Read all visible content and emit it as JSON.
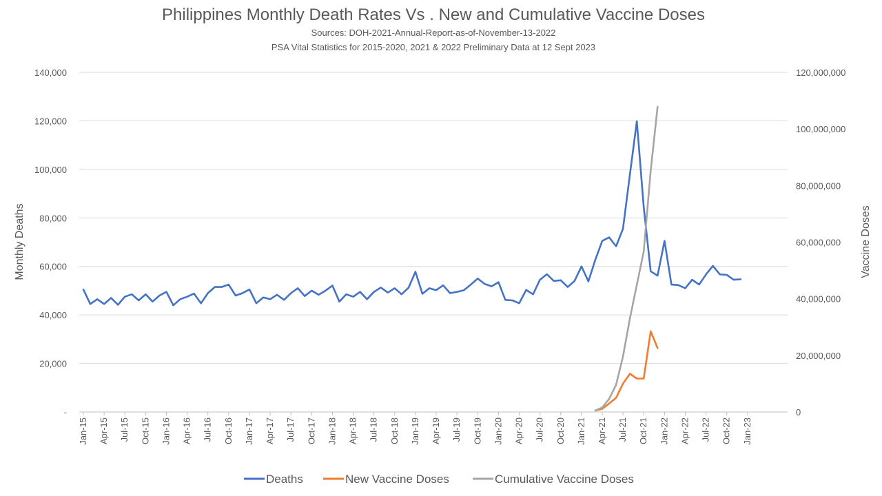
{
  "chart_data": {
    "type": "line",
    "title": "Philippines Monthly Death Rates Vs . New and Cumulative Vaccine Doses",
    "subtitles": [
      "Sources: DOH-2021-Annual-Report-as-of-November-13-2022",
      "PSA Vital Statistics for 2015-2020, 2021 & 2022 Preliminary Data at 12 Sept 2023"
    ],
    "ylabel": "Monthly Deaths",
    "y2label": "Vaccine Doses",
    "ylim": [
      0,
      140000
    ],
    "y2lim": [
      0,
      120000000
    ],
    "y_ticks": [
      "-",
      "20,000",
      "40,000",
      "60,000",
      "80,000",
      "100,000",
      "120,000",
      "140,000"
    ],
    "y2_ticks": [
      "0",
      "20,000,000",
      "40,000,000",
      "60,000,000",
      "80,000,000",
      "100,000,000",
      "120,000,000"
    ],
    "x_start": "Jan-15",
    "x_tick_labels": [
      "Jan-15",
      "Apr-15",
      "Jul-15",
      "Oct-15",
      "Jan-16",
      "Apr-16",
      "Jul-16",
      "Oct-16",
      "Jan-17",
      "Apr-17",
      "Jul-17",
      "Oct-17",
      "Jan-18",
      "Apr-18",
      "Jul-18",
      "Oct-18",
      "Jan-19",
      "Apr-19",
      "Jul-19",
      "Oct-19",
      "Jan-20",
      "Apr-20",
      "Jul-20",
      "Oct-20",
      "Jan-21",
      "Apr-21",
      "Jul-21",
      "Oct-21",
      "Jan-22",
      "Apr-22",
      "Jul-22",
      "Oct-22",
      "Jan-23"
    ],
    "grid": "horizontal",
    "legend_position": "bottom",
    "series": [
      {
        "name": "Deaths",
        "axis": "left",
        "color": "#4472C4",
        "start": "Jan-15",
        "values": [
          50500,
          44500,
          46500,
          44500,
          47000,
          44200,
          47500,
          48500,
          46000,
          48500,
          45500,
          48000,
          49500,
          44000,
          46500,
          47500,
          48800,
          44800,
          49000,
          51500,
          51500,
          52500,
          48000,
          49000,
          50500,
          44800,
          47200,
          46500,
          48300,
          46200,
          49000,
          51000,
          47800,
          50000,
          48300,
          50000,
          52100,
          45500,
          48500,
          47500,
          49500,
          46500,
          49500,
          51300,
          49200,
          51000,
          48500,
          51200,
          57800,
          48700,
          51000,
          50200,
          52200,
          49000,
          49500,
          50200,
          52500,
          55000,
          52800,
          51800,
          53500,
          46200,
          46000,
          44800,
          50300,
          48500,
          54500,
          56800,
          54000,
          54300,
          51500,
          54000,
          60000,
          53800,
          62800,
          70500,
          72000,
          68300,
          75500,
          98000,
          119800,
          84500,
          58000,
          56200,
          70500,
          52500,
          52300,
          51000,
          54500,
          52500,
          56700,
          60200,
          56700,
          56500,
          54500,
          54700
        ]
      },
      {
        "name": "New Vaccine Doses",
        "axis": "right",
        "color": "#ED7D31",
        "start": "Mar-21",
        "values": [
          500000,
          1100000,
          3000000,
          5000000,
          10000000,
          13500000,
          11800000,
          11800000,
          28500000,
          22600000
        ]
      },
      {
        "name": "Cumulative Vaccine Doses",
        "axis": "right",
        "color": "#A5A5A5",
        "start": "Mar-21",
        "values": [
          500000,
          1600000,
          4600000,
          9600000,
          19600000,
          33100000,
          44900000,
          56700000,
          85200000,
          107800000
        ]
      }
    ]
  }
}
